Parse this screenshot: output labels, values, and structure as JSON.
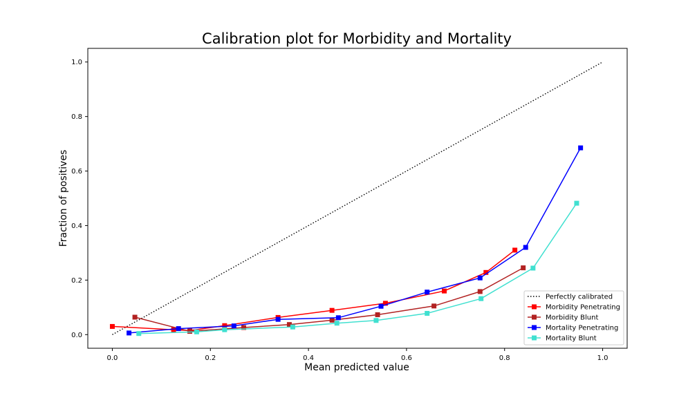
{
  "chart_data": {
    "type": "line",
    "title": "Calibration plot for Morbidity and Mortality",
    "xlabel": "Mean predicted value",
    "ylabel": "Fraction of positives",
    "xlim": [
      -0.05,
      1.05
    ],
    "ylim": [
      -0.05,
      1.05
    ],
    "xticks": [
      0.0,
      0.2,
      0.4,
      0.6,
      0.8,
      1.0
    ],
    "yticks": [
      0.0,
      0.2,
      0.4,
      0.6,
      0.8,
      1.0
    ],
    "xtick_labels": [
      "0.0",
      "0.2",
      "0.4",
      "0.6",
      "0.8",
      "1.0"
    ],
    "ytick_labels": [
      "0.0",
      "0.2",
      "0.4",
      "0.6",
      "0.8",
      "1.0"
    ],
    "grid": false,
    "legend_position": "lower-right",
    "reference": {
      "name": "Perfectly calibrated",
      "color": "#000000",
      "style": "dotted",
      "x": [
        0,
        1
      ],
      "y": [
        0,
        1
      ]
    },
    "series": [
      {
        "name": "Morbidity Penetrating",
        "color": "#ff0000",
        "marker": "square",
        "x": [
          0.0,
          0.125,
          0.158,
          0.229,
          0.338,
          0.448,
          0.557,
          0.677,
          0.762,
          0.821
        ],
        "y": [
          0.03,
          0.018,
          0.015,
          0.033,
          0.063,
          0.089,
          0.115,
          0.16,
          0.228,
          0.31
        ]
      },
      {
        "name": "Morbidity Blunt",
        "color": "#b22222",
        "marker": "square",
        "x": [
          0.046,
          0.158,
          0.268,
          0.361,
          0.448,
          0.541,
          0.656,
          0.75,
          0.838
        ],
        "y": [
          0.064,
          0.012,
          0.026,
          0.037,
          0.053,
          0.073,
          0.105,
          0.158,
          0.245
        ]
      },
      {
        "name": "Mortality Penetrating",
        "color": "#0000ff",
        "marker": "square",
        "x": [
          0.034,
          0.135,
          0.248,
          0.338,
          0.461,
          0.548,
          0.642,
          0.75,
          0.843,
          0.955
        ],
        "y": [
          0.006,
          0.022,
          0.032,
          0.056,
          0.062,
          0.104,
          0.156,
          0.208,
          0.32,
          0.685
        ]
      },
      {
        "name": "Mortality Blunt",
        "color": "#40e0d0",
        "marker": "square",
        "x": [
          0.054,
          0.172,
          0.229,
          0.368,
          0.458,
          0.538,
          0.642,
          0.752,
          0.858,
          0.947
        ],
        "y": [
          0.004,
          0.01,
          0.018,
          0.028,
          0.042,
          0.052,
          0.078,
          0.132,
          0.244,
          0.482
        ]
      }
    ]
  }
}
